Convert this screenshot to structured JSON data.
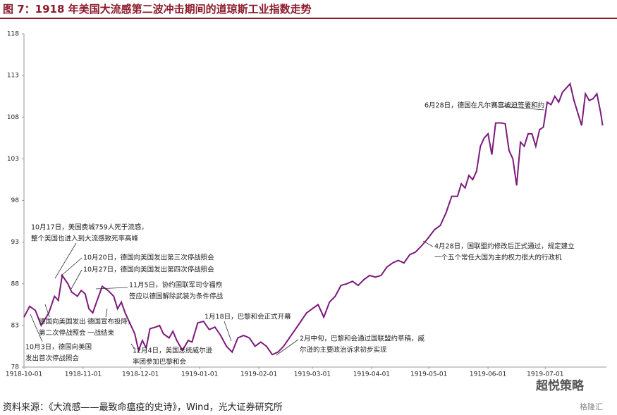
{
  "chart_data": {
    "type": "line",
    "title": "图 7：1918 年美国大流感第二波冲击期间的道琼斯工业指数走势",
    "source": "资料来源：《大流感——最致命瘟疫的史诗》，Wind，光大证券研究所",
    "watermark": [
      "超悦策略",
      "格隆汇"
    ],
    "x": [
      "1918-10-01",
      "1918-10-04",
      "1918-10-07",
      "1918-10-10",
      "1918-10-14",
      "1918-10-17",
      "1918-10-19",
      "1918-10-21",
      "1918-10-24",
      "1918-10-26",
      "1918-10-29",
      "1918-10-31",
      "1918-11-02",
      "1918-11-04",
      "1918-11-06",
      "1918-11-08",
      "1918-11-11",
      "1918-11-14",
      "1918-11-17",
      "1918-11-19",
      "1918-11-21",
      "1918-11-23",
      "1918-11-26",
      "1918-11-28",
      "1918-11-30",
      "1918-12-02",
      "1918-12-04",
      "1918-12-06",
      "1918-12-09",
      "1918-12-11",
      "1918-12-13",
      "1918-12-16",
      "1918-12-18",
      "1918-12-20",
      "1918-12-23",
      "1918-12-26",
      "1918-12-28",
      "1918-12-31",
      "1919-01-03",
      "1919-01-06",
      "1919-01-09",
      "1919-01-12",
      "1919-01-15",
      "1919-01-18",
      "1919-01-21",
      "1919-01-24",
      "1919-01-27",
      "1919-01-30",
      "1919-02-02",
      "1919-02-05",
      "1919-02-08",
      "1919-02-11",
      "1919-02-14",
      "1919-02-17",
      "1919-02-20",
      "1919-02-23",
      "1919-02-26",
      "1919-03-01",
      "1919-03-04",
      "1919-03-07",
      "1919-03-10",
      "1919-03-13",
      "1919-03-16",
      "1919-03-19",
      "1919-03-22",
      "1919-03-25",
      "1919-03-28",
      "1919-03-31",
      "1919-04-03",
      "1919-04-06",
      "1919-04-09",
      "1919-04-12",
      "1919-04-15",
      "1919-04-18",
      "1919-04-21",
      "1919-04-24",
      "1919-04-27",
      "1919-04-30",
      "1919-05-04",
      "1919-05-07",
      "1919-05-10",
      "1919-05-13",
      "1919-05-16",
      "1919-05-18",
      "1919-05-20",
      "1919-05-22",
      "1919-05-24",
      "1919-05-26",
      "1919-05-28",
      "1919-05-30",
      "1919-06-01",
      "1919-06-03",
      "1919-06-05",
      "1919-06-08",
      "1919-06-10",
      "1919-06-12",
      "1919-06-14",
      "1919-06-16",
      "1919-06-18",
      "1919-06-20",
      "1919-06-22",
      "1919-06-24",
      "1919-06-26",
      "1919-06-28",
      "1919-06-30",
      "1919-07-02",
      "1919-07-04",
      "1919-07-06",
      "1919-07-08",
      "1919-07-10",
      "1919-07-12",
      "1919-07-14",
      "1919-07-16",
      "1919-07-18",
      "1919-07-20",
      "1919-07-22",
      "1919-07-24",
      "1919-07-26",
      "1919-07-28",
      "1919-07-30",
      "1919-07-31"
    ],
    "series": [
      {
        "color": "#7b1a7b",
        "values": [
          84.0,
          85.3,
          84.8,
          83.0,
          84.5,
          86.5,
          86.0,
          89.0,
          88.0,
          87.0,
          86.5,
          87.2,
          86.8,
          85.0,
          84.5,
          85.8,
          87.7,
          87.2,
          86.5,
          85.0,
          85.8,
          84.5,
          83.0,
          82.0,
          80.0,
          81.2,
          80.3,
          82.6,
          82.8,
          83.0,
          82.0,
          81.5,
          82.3,
          81.2,
          80.0,
          81.2,
          81.0,
          83.3,
          83.5,
          82.5,
          82.8,
          81.8,
          80.5,
          79.8,
          81.5,
          81.8,
          81.5,
          80.5,
          81.0,
          80.5,
          79.5,
          79.8,
          80.5,
          81.5,
          82.5,
          83.5,
          84.5,
          85.0,
          85.5,
          84.0,
          85.8,
          86.5,
          87.8,
          88.0,
          88.3,
          87.8,
          88.5,
          89.0,
          88.8,
          89.0,
          90.0,
          90.5,
          90.8,
          90.5,
          91.5,
          91.8,
          92.5,
          93.3,
          94.5,
          95.0,
          96.5,
          98.5,
          98.5,
          100.0,
          99.5,
          101.0,
          100.5,
          101.5,
          104.5,
          105.5,
          106.0,
          103.5,
          107.3,
          107.3,
          107.2,
          104.0,
          103.0,
          99.8,
          105.0,
          104.5,
          106.0,
          106.0,
          104.5,
          106.5,
          106.8,
          109.8,
          109.5,
          110.5,
          109.8,
          111.0,
          111.5,
          112.0,
          110.0,
          108.5,
          107.0,
          110.8,
          110.0,
          110.2,
          110.8,
          108.5,
          107.0
        ]
      }
    ],
    "xlim": [
      "1918-10-01",
      "1919-08-02"
    ],
    "xticks": [
      "1918-10-01",
      "1918-11-01",
      "1918-12-01",
      "1919-01-01",
      "1919-02-01",
      "1919-03-01",
      "1919-04-01",
      "1919-05-01",
      "1919-06-01",
      "1919-07-01"
    ],
    "ylim": [
      78,
      118
    ],
    "yticks": [
      78,
      83,
      88,
      93,
      98,
      103,
      108,
      113,
      118
    ],
    "grid": false,
    "annotations": [
      {
        "lines": [
          "10月17日，美国费城759人死于流感，",
          "整个美国也进入到大流感致死率高峰"
        ]
      },
      {
        "lines": [
          "10月20日，德国向美国发出第三次停战照会"
        ]
      },
      {
        "lines": [
          "10月27日，德国向美国发出第四次停战照会"
        ]
      },
      {
        "lines": [
          "11月5日，协约国联军司令福煦",
          "签应以德国解除武装为条件停战"
        ]
      },
      {
        "lines": [
          "德国宣布投降，",
          "一战结束"
        ]
      },
      {
        "lines": [
          "德国向美国发出",
          "第二次停战照会"
        ]
      },
      {
        "lines": [
          "10月3日，德国向美国",
          "发出首次停战照会"
        ]
      },
      {
        "lines": [
          "12月4日，美国总统威尔逊",
          "率团参加巴黎和会"
        ]
      },
      {
        "lines": [
          "1月18日，巴黎和会正式开幕"
        ]
      },
      {
        "lines": [
          "2月中旬，巴黎和会通过国联盟约草稿，威",
          "尔逊的主要政治诉求初步实现"
        ]
      },
      {
        "lines": [
          "4月28日，国联盟约修改后正式通过，规定建立",
          "一个五个常任大国为主的权力很大的行政机"
        ]
      },
      {
        "lines": [
          "6月28日，德国在凡尔赛宫被迫签署和约"
        ]
      }
    ]
  }
}
